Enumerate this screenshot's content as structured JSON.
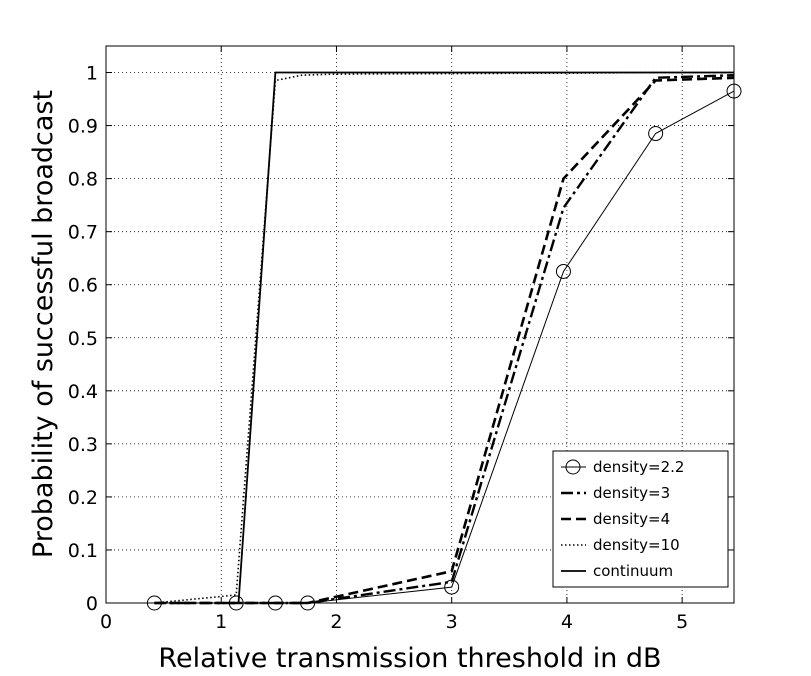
{
  "chart_data": {
    "type": "line",
    "title": "",
    "xlabel": "Relative transmission threshold in dB",
    "ylabel": "Probability of successful broadcast",
    "xlim": [
      0,
      5.45
    ],
    "ylim": [
      0,
      1.05
    ],
    "xticks": [
      0,
      1,
      2,
      3,
      4,
      5
    ],
    "yticks": [
      0,
      0.1,
      0.2,
      0.3,
      0.4,
      0.5,
      0.6,
      0.7,
      0.8,
      0.9,
      1
    ],
    "xtick_labels": [
      "0",
      "1",
      "2",
      "3",
      "4",
      "5"
    ],
    "ytick_labels": [
      "0",
      "0.1",
      "0.2",
      "0.3",
      "0.4",
      "0.5",
      "0.6",
      "0.7",
      "0.8",
      "0.9",
      "1"
    ],
    "grid": true,
    "legend_position": "lower-right",
    "series": [
      {
        "name": "density=2.2",
        "style": "solid-thin-circle",
        "x": [
          0.42,
          1.13,
          1.47,
          1.75,
          3.0,
          3.97,
          4.77,
          5.45
        ],
        "y": [
          0,
          0,
          0,
          0,
          0.03,
          0.625,
          0.885,
          0.965
        ]
      },
      {
        "name": "density=3",
        "style": "dashdot",
        "x": [
          0.42,
          1.13,
          1.47,
          1.75,
          3.0,
          3.97,
          4.77,
          5.45
        ],
        "y": [
          0,
          0,
          0,
          0,
          0.04,
          0.745,
          0.99,
          0.995
        ]
      },
      {
        "name": "density=4",
        "style": "dashed",
        "x": [
          0.42,
          1.13,
          1.47,
          1.75,
          3.0,
          3.97,
          4.77,
          5.45
        ],
        "y": [
          0,
          0,
          0,
          0,
          0.06,
          0.8,
          0.985,
          0.99
        ]
      },
      {
        "name": "density=10",
        "style": "dotted",
        "x": [
          0.42,
          1.13,
          1.47,
          1.7,
          2.0,
          3.0,
          4.0,
          4.77,
          5.45
        ],
        "y": [
          0,
          0.015,
          0.985,
          0.995,
          0.997,
          0.998,
          0.999,
          1,
          1
        ]
      },
      {
        "name": "continuum",
        "style": "solid",
        "x": [
          1.15,
          1.47,
          5.45
        ],
        "y": [
          0,
          1,
          1
        ]
      }
    ]
  }
}
